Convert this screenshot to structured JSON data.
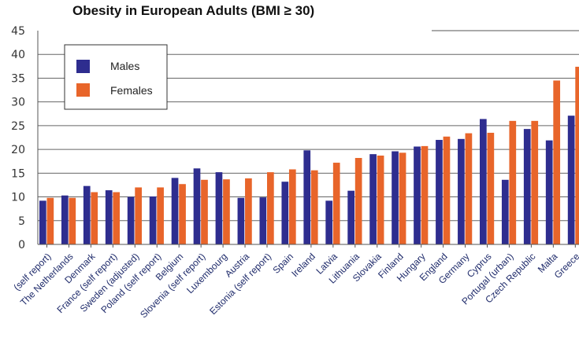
{
  "chart_data": {
    "type": "bar",
    "title": "Obesity in European Adults (BMI ≥ 30)",
    "xlabel": "",
    "ylabel": "",
    "ylim": [
      0,
      45
    ],
    "yticks": [
      0,
      5,
      10,
      15,
      20,
      25,
      30,
      35,
      40,
      45
    ],
    "grid": true,
    "legend_position": "top-left",
    "categories": [
      "(self report)",
      "The Netherlands",
      "Denmark",
      "France (self report)",
      "Sweden (adjusted)",
      "Poland (self report)",
      "Belgium",
      "Slovenia (self report)",
      "Luxembourg",
      "Austria",
      "Estonia (self report)",
      "Spain",
      "Ireland",
      "Latvia",
      "Lithuania",
      "Slovakia",
      "Finland",
      "Hungary",
      "England",
      "Germany",
      "Cyprus",
      "Portugal (urban)",
      "Czech Republic",
      "Malta",
      "Greece"
    ],
    "series": [
      {
        "name": "Males",
        "color": "#2e2d8f",
        "values": [
          9.2,
          10.3,
          12.3,
          11.4,
          10.0,
          10.1,
          14.0,
          16.0,
          15.2,
          9.8,
          9.9,
          13.2,
          19.8,
          9.2,
          11.3,
          19.0,
          19.6,
          20.6,
          22.0,
          22.2,
          26.4,
          13.6,
          24.3,
          21.9,
          27.1
        ]
      },
      {
        "name": "Females",
        "color": "#e8652a",
        "values": [
          9.8,
          9.8,
          11.0,
          11.0,
          12.0,
          12.0,
          12.7,
          13.6,
          13.7,
          13.9,
          15.2,
          15.8,
          15.6,
          17.2,
          18.2,
          18.7,
          19.3,
          20.7,
          22.7,
          23.4,
          23.5,
          26.0,
          26.0,
          34.5,
          37.4
        ]
      }
    ]
  }
}
